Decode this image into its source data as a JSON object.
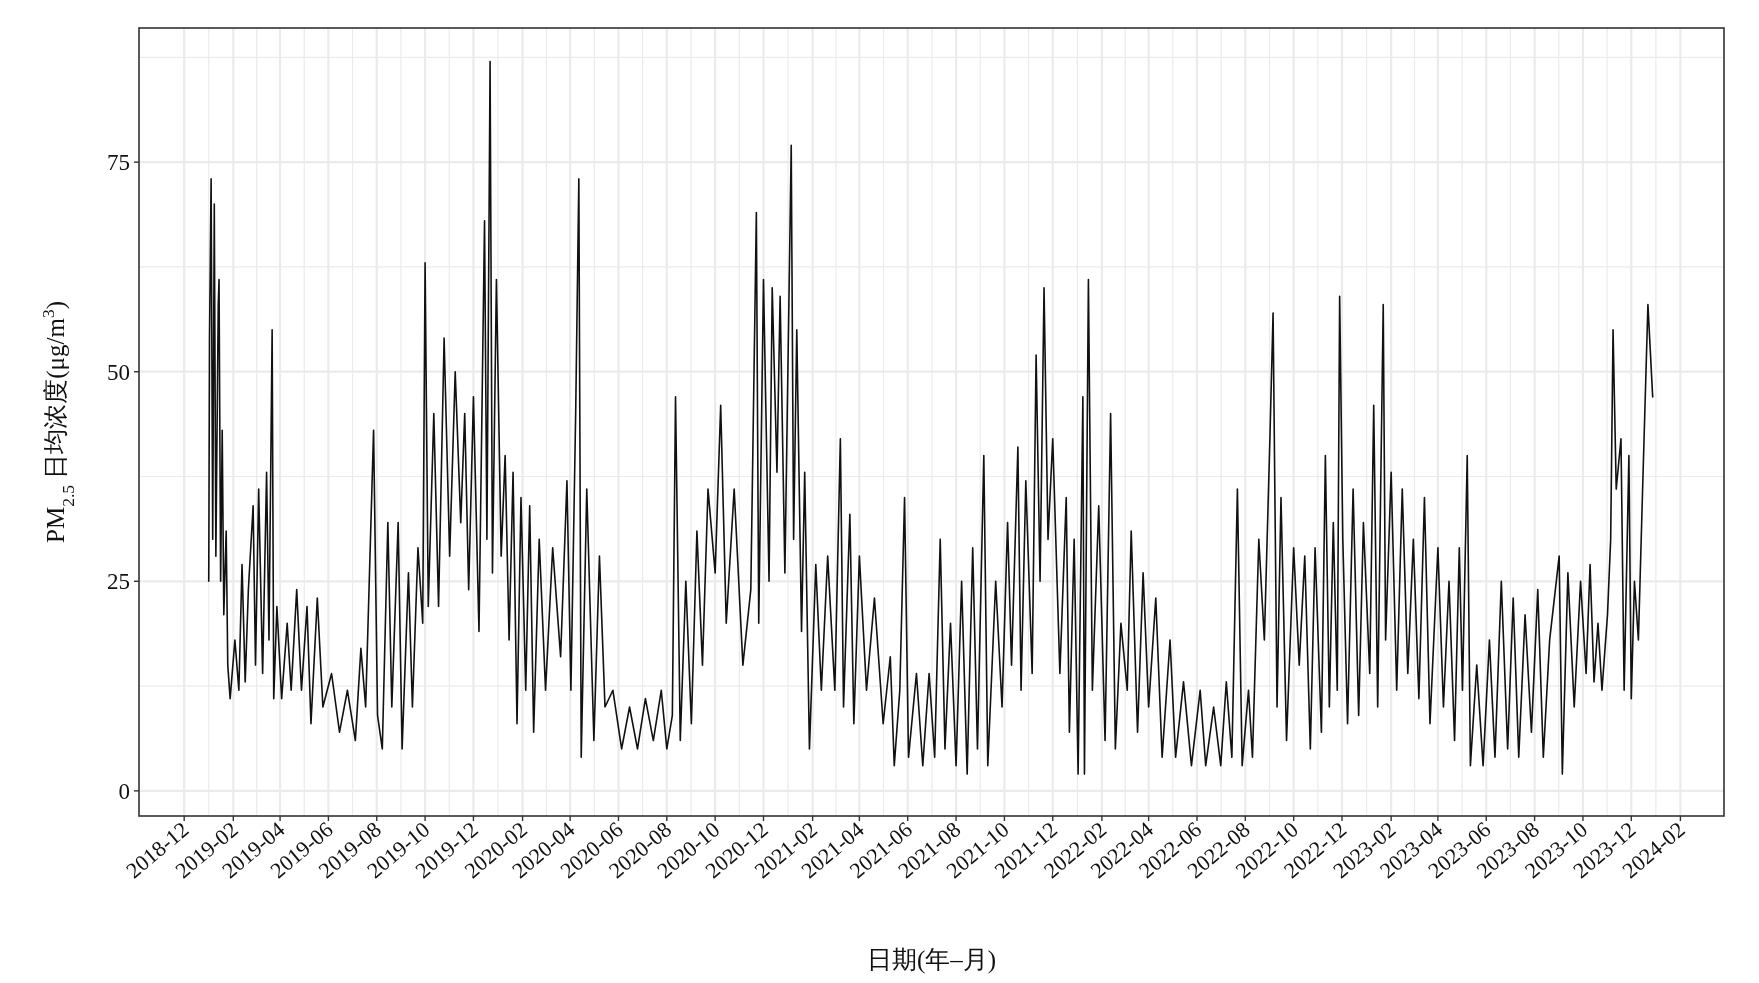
{
  "chart_data": {
    "type": "line",
    "xlabel": "日期(年–月)",
    "ylabel": "PM$_{2.5}$ 日均浓度(μg/m$^{3}$)",
    "xlim": [
      "2018-10-05",
      "2024-03-27"
    ],
    "ylim": [
      -3,
      91
    ],
    "xticks": [
      "2018-12",
      "2019-02",
      "2019-04",
      "2019-06",
      "2019-08",
      "2019-10",
      "2019-12",
      "2020-02",
      "2020-04",
      "2020-06",
      "2020-08",
      "2020-10",
      "2020-12",
      "2021-02",
      "2021-04",
      "2021-06",
      "2021-08",
      "2021-10",
      "2021-12",
      "2022-02",
      "2022-04",
      "2022-06",
      "2022-08",
      "2022-10",
      "2022-12",
      "2023-02",
      "2023-04",
      "2023-06",
      "2023-08",
      "2023-10",
      "2023-12",
      "2024-02"
    ],
    "yticks": [
      0,
      25,
      50,
      75
    ],
    "grid": true,
    "series": [
      {
        "color": "#111111",
        "x": [
          "2019-01-01",
          "2019-01-02",
          "2019-01-04",
          "2019-01-06",
          "2019-01-08",
          "2019-01-10",
          "2019-01-13",
          "2019-01-14",
          "2019-01-16",
          "2019-01-18",
          "2019-01-20",
          "2019-01-23",
          "2019-01-25",
          "2019-01-28",
          "2019-02-03",
          "2019-02-08",
          "2019-02-12",
          "2019-02-16",
          "2019-02-20",
          "2019-02-26",
          "2019-03-01",
          "2019-03-05",
          "2019-03-10",
          "2019-03-15",
          "2019-03-18",
          "2019-03-22",
          "2019-03-24",
          "2019-03-28",
          "2019-04-03",
          "2019-04-10",
          "2019-04-15",
          "2019-04-22",
          "2019-04-28",
          "2019-05-05",
          "2019-05-10",
          "2019-05-18",
          "2019-05-25",
          "2019-06-05",
          "2019-06-15",
          "2019-06-25",
          "2019-07-05",
          "2019-07-12",
          "2019-07-18",
          "2019-07-28",
          "2019-08-02",
          "2019-08-08",
          "2019-08-15",
          "2019-08-20",
          "2019-08-28",
          "2019-09-02",
          "2019-09-10",
          "2019-09-15",
          "2019-09-22",
          "2019-09-28",
          "2019-10-01",
          "2019-10-05",
          "2019-10-12",
          "2019-10-18",
          "2019-10-25",
          "2019-11-01",
          "2019-11-08",
          "2019-11-15",
          "2019-11-20",
          "2019-11-25",
          "2019-12-01",
          "2019-12-08",
          "2019-12-15",
          "2019-12-18",
          "2019-12-22",
          "2019-12-25",
          "2019-12-30",
          "2020-01-05",
          "2020-01-10",
          "2020-01-15",
          "2020-01-20",
          "2020-01-25",
          "2020-01-30",
          "2020-02-05",
          "2020-02-10",
          "2020-02-15",
          "2020-02-22",
          "2020-03-01",
          "2020-03-10",
          "2020-03-20",
          "2020-03-28",
          "2020-04-02",
          "2020-04-08",
          "2020-04-12",
          "2020-04-15",
          "2020-04-22",
          "2020-05-01",
          "2020-05-08",
          "2020-05-15",
          "2020-05-25",
          "2020-06-05",
          "2020-06-15",
          "2020-06-25",
          "2020-07-05",
          "2020-07-15",
          "2020-07-25",
          "2020-08-01",
          "2020-08-08",
          "2020-08-12",
          "2020-08-18",
          "2020-08-25",
          "2020-09-01",
          "2020-09-08",
          "2020-09-15",
          "2020-09-22",
          "2020-10-01",
          "2020-10-08",
          "2020-10-15",
          "2020-10-25",
          "2020-11-05",
          "2020-11-15",
          "2020-11-22",
          "2020-11-25",
          "2020-12-01",
          "2020-12-08",
          "2020-12-12",
          "2020-12-18",
          "2020-12-22",
          "2020-12-28",
          "2021-01-05",
          "2021-01-08",
          "2021-01-12",
          "2021-01-18",
          "2021-01-22",
          "2021-01-28",
          "2021-02-05",
          "2021-02-12",
          "2021-02-20",
          "2021-03-01",
          "2021-03-08",
          "2021-03-12",
          "2021-03-20",
          "2021-03-25",
          "2021-04-01",
          "2021-04-10",
          "2021-04-20",
          "2021-05-01",
          "2021-05-10",
          "2021-05-15",
          "2021-05-22",
          "2021-05-28",
          "2021-06-02",
          "2021-06-12",
          "2021-06-20",
          "2021-06-28",
          "2021-07-05",
          "2021-07-12",
          "2021-07-18",
          "2021-07-25",
          "2021-08-01",
          "2021-08-08",
          "2021-08-15",
          "2021-08-22",
          "2021-08-28",
          "2021-09-05",
          "2021-09-10",
          "2021-09-20",
          "2021-09-28",
          "2021-10-05",
          "2021-10-10",
          "2021-10-18",
          "2021-10-22",
          "2021-10-28",
          "2021-11-05",
          "2021-11-10",
          "2021-11-15",
          "2021-11-20",
          "2021-11-25",
          "2021-12-01",
          "2021-12-10",
          "2021-12-18",
          "2021-12-22",
          "2021-12-28",
          "2022-01-02",
          "2022-01-08",
          "2022-01-10",
          "2022-01-15",
          "2022-01-20",
          "2022-01-28",
          "2022-02-05",
          "2022-02-12",
          "2022-02-18",
          "2022-02-25",
          "2022-03-05",
          "2022-03-10",
          "2022-03-18",
          "2022-03-25",
          "2022-04-01",
          "2022-04-10",
          "2022-04-18",
          "2022-04-28",
          "2022-05-05",
          "2022-05-15",
          "2022-05-25",
          "2022-06-05",
          "2022-06-12",
          "2022-06-22",
          "2022-07-01",
          "2022-07-08",
          "2022-07-15",
          "2022-07-22",
          "2022-07-28",
          "2022-08-05",
          "2022-08-10",
          "2022-08-18",
          "2022-08-25",
          "2022-09-01",
          "2022-09-05",
          "2022-09-10",
          "2022-09-15",
          "2022-09-22",
          "2022-10-01",
          "2022-10-08",
          "2022-10-15",
          "2022-10-22",
          "2022-10-28",
          "2022-11-05",
          "2022-11-10",
          "2022-11-15",
          "2022-11-20",
          "2022-11-25",
          "2022-11-28",
          "2022-12-02",
          "2022-12-08",
          "2022-12-15",
          "2022-12-22",
          "2022-12-28",
          "2023-01-05",
          "2023-01-10",
          "2023-01-15",
          "2023-01-22",
          "2023-01-25",
          "2023-02-01",
          "2023-02-08",
          "2023-02-15",
          "2023-02-22",
          "2023-03-01",
          "2023-03-08",
          "2023-03-15",
          "2023-03-22",
          "2023-04-01",
          "2023-04-08",
          "2023-04-15",
          "2023-04-22",
          "2023-04-28",
          "2023-05-02",
          "2023-05-08",
          "2023-05-12",
          "2023-05-20",
          "2023-05-28",
          "2023-06-05",
          "2023-06-12",
          "2023-06-20",
          "2023-06-28",
          "2023-07-05",
          "2023-07-12",
          "2023-07-20",
          "2023-07-28",
          "2023-08-05",
          "2023-08-12",
          "2023-08-20",
          "2023-09-01",
          "2023-09-05",
          "2023-09-12",
          "2023-09-20",
          "2023-09-28",
          "2023-10-05",
          "2023-10-10",
          "2023-10-15",
          "2023-10-20",
          "2023-10-25",
          "2023-11-01",
          "2023-11-05",
          "2023-11-08",
          "2023-11-12",
          "2023-11-18",
          "2023-11-22",
          "2023-11-28",
          "2023-12-01",
          "2023-12-05",
          "2023-12-10",
          "2023-12-15",
          "2023-12-22",
          "2023-12-28"
        ],
        "values": [
          25,
          54,
          73,
          30,
          70,
          28,
          58,
          61,
          25,
          43,
          21,
          31,
          15,
          11,
          18,
          12,
          27,
          13,
          24,
          34,
          15,
          36,
          14,
          38,
          18,
          55,
          11,
          22,
          11,
          20,
          12,
          24,
          12,
          22,
          8,
          23,
          10,
          14,
          7,
          12,
          6,
          17,
          10,
          43,
          9,
          5,
          32,
          10,
          32,
          5,
          26,
          10,
          29,
          20,
          63,
          22,
          45,
          22,
          54,
          28,
          50,
          32,
          45,
          24,
          47,
          19,
          68,
          30,
          87,
          26,
          61,
          28,
          40,
          18,
          38,
          8,
          35,
          12,
          34,
          7,
          30,
          12,
          29,
          16,
          37,
          12,
          45,
          73,
          4,
          36,
          6,
          28,
          10,
          12,
          5,
          10,
          5,
          11,
          6,
          12,
          5,
          9,
          47,
          6,
          25,
          8,
          31,
          15,
          36,
          26,
          46,
          20,
          36,
          15,
          24,
          69,
          20,
          61,
          25,
          60,
          38,
          59,
          26,
          77,
          30,
          55,
          19,
          38,
          5,
          27,
          12,
          28,
          12,
          42,
          10,
          33,
          8,
          28,
          12,
          23,
          8,
          16,
          3,
          12,
          35,
          4,
          14,
          3,
          14,
          4,
          30,
          5,
          20,
          3,
          25,
          2,
          29,
          5,
          40,
          3,
          25,
          10,
          32,
          15,
          41,
          12,
          37,
          14,
          52,
          25,
          60,
          30,
          42,
          14,
          35,
          7,
          30,
          2,
          47,
          2,
          61,
          12,
          34,
          6,
          45,
          5,
          20,
          12,
          31,
          7,
          26,
          10,
          23,
          4,
          18,
          4,
          13,
          3,
          12,
          3,
          10,
          3,
          13,
          4,
          36,
          3,
          12,
          4,
          30,
          18,
          42,
          57,
          10,
          35,
          6,
          29,
          15,
          28,
          5,
          29,
          7,
          40,
          10,
          32,
          12,
          59,
          30,
          8,
          36,
          9,
          32,
          14,
          46,
          10,
          58,
          18,
          38,
          12,
          36,
          14,
          30,
          11,
          35,
          8,
          29,
          10,
          25,
          6,
          29,
          12,
          40,
          3,
          15,
          3,
          18,
          4,
          25,
          5,
          23,
          4,
          21,
          7,
          24,
          4,
          18,
          28,
          2,
          26,
          10,
          25,
          14,
          27,
          13,
          20,
          12,
          21,
          30,
          55,
          36,
          42,
          12,
          40,
          11,
          25,
          18,
          35,
          58,
          47
        ]
      }
    ]
  }
}
